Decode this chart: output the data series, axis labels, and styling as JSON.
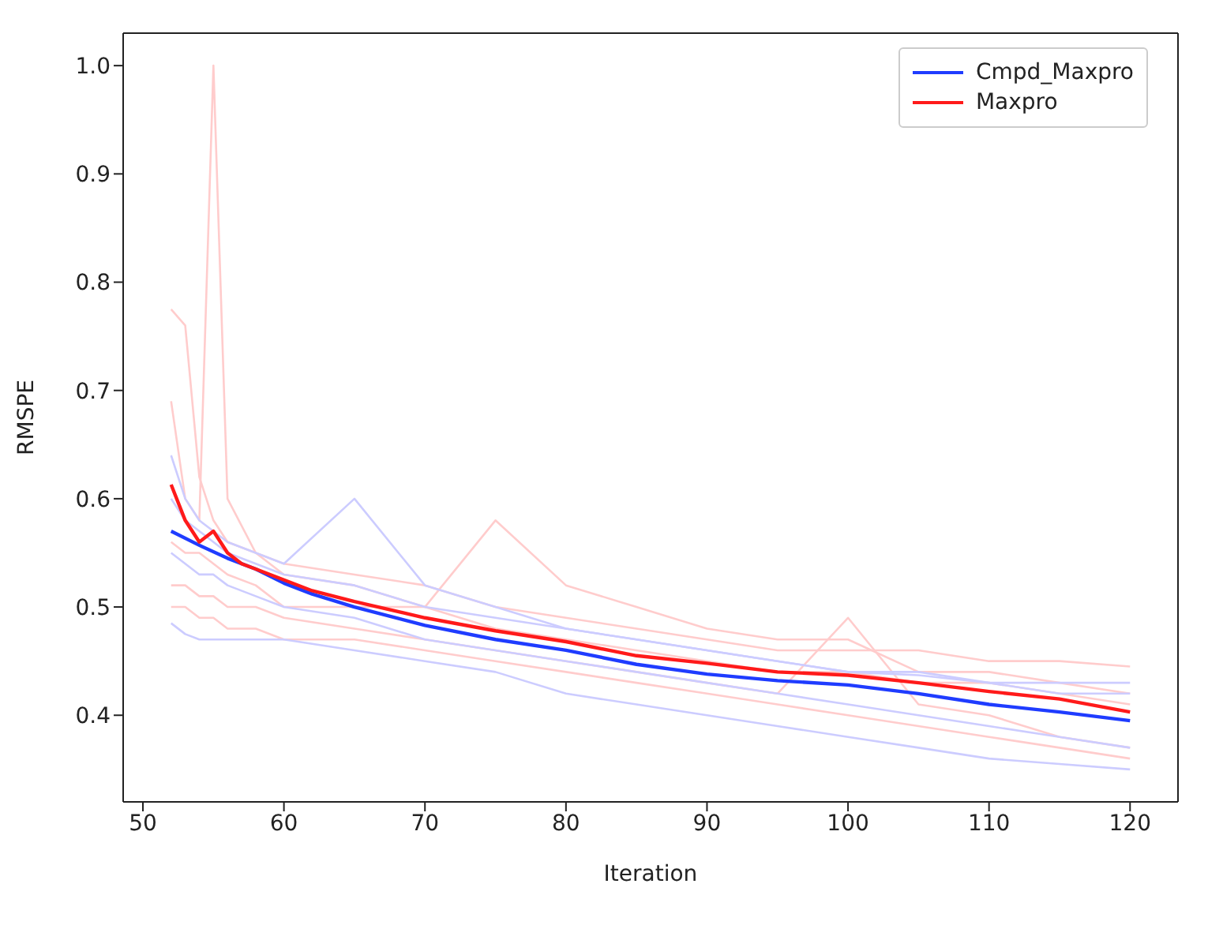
{
  "chart_data": {
    "type": "line",
    "xlabel": "Iteration",
    "ylabel": "RMSPE",
    "xlim": [
      48.6,
      123.4
    ],
    "ylim": [
      0.32,
      1.03
    ],
    "xticks": [
      50,
      60,
      70,
      80,
      90,
      100,
      110,
      120
    ],
    "yticks": [
      {
        "value": 0.4,
        "label": "0.4"
      },
      {
        "value": 0.5,
        "label": "0.5"
      },
      {
        "value": 0.6,
        "label": "0.6"
      },
      {
        "value": 0.7,
        "label": "0.7"
      },
      {
        "value": 0.8,
        "label": "0.8"
      },
      {
        "value": 0.9,
        "label": "0.9"
      },
      {
        "value": 1,
        "label": "1.0"
      }
    ],
    "grid": false,
    "legend": "top right",
    "marker": "none",
    "line_style": "solid",
    "series": [
      {
        "color": "#ffcccc",
        "x": [
          52,
          53,
          54,
          55,
          56,
          58,
          60,
          65,
          70,
          75,
          80,
          85,
          90,
          95,
          100,
          105,
          110,
          115,
          120
        ],
        "values": [
          0.69,
          0.6,
          0.58,
          1.0,
          0.6,
          0.55,
          0.53,
          0.52,
          0.5,
          0.48,
          0.47,
          0.46,
          0.45,
          0.44,
          0.44,
          0.43,
          0.43,
          0.42,
          0.41
        ]
      },
      {
        "color": "#ffcccc",
        "x": [
          52,
          53,
          54,
          55,
          56,
          58,
          60,
          65,
          70,
          75,
          80,
          85,
          90,
          95,
          100,
          105,
          110,
          115,
          120
        ],
        "values": [
          0.775,
          0.76,
          0.62,
          0.58,
          0.56,
          0.55,
          0.54,
          0.53,
          0.52,
          0.5,
          0.49,
          0.48,
          0.47,
          0.46,
          0.46,
          0.46,
          0.45,
          0.45,
          0.445
        ]
      },
      {
        "color": "#ffcccc",
        "x": [
          52,
          53,
          54,
          55,
          56,
          58,
          60,
          65,
          70,
          75,
          80,
          85,
          90,
          95,
          100,
          105,
          110,
          115,
          120
        ],
        "values": [
          0.56,
          0.55,
          0.55,
          0.54,
          0.53,
          0.52,
          0.5,
          0.5,
          0.5,
          0.58,
          0.52,
          0.5,
          0.48,
          0.47,
          0.47,
          0.44,
          0.44,
          0.43,
          0.42
        ]
      },
      {
        "color": "#ffcccc",
        "x": [
          52,
          53,
          54,
          55,
          56,
          58,
          60,
          65,
          70,
          75,
          80,
          85,
          90,
          95,
          100,
          105,
          110,
          115,
          120
        ],
        "values": [
          0.52,
          0.52,
          0.51,
          0.51,
          0.5,
          0.5,
          0.49,
          0.48,
          0.47,
          0.46,
          0.45,
          0.44,
          0.43,
          0.42,
          0.49,
          0.41,
          0.4,
          0.38,
          0.37
        ]
      },
      {
        "color": "#ffcccc",
        "x": [
          52,
          53,
          54,
          55,
          56,
          58,
          60,
          65,
          70,
          75,
          80,
          85,
          90,
          95,
          100,
          105,
          110,
          115,
          120
        ],
        "values": [
          0.5,
          0.5,
          0.49,
          0.49,
          0.48,
          0.48,
          0.47,
          0.47,
          0.46,
          0.45,
          0.44,
          0.43,
          0.42,
          0.41,
          0.4,
          0.39,
          0.38,
          0.37,
          0.36
        ]
      },
      {
        "color": "#ccccff",
        "x": [
          52,
          53,
          54,
          55,
          56,
          58,
          60,
          65,
          70,
          75,
          80,
          85,
          90,
          95,
          100,
          105,
          110,
          115,
          120
        ],
        "values": [
          0.64,
          0.6,
          0.58,
          0.57,
          0.56,
          0.55,
          0.54,
          0.6,
          0.52,
          0.5,
          0.48,
          0.47,
          0.46,
          0.45,
          0.44,
          0.437,
          0.43,
          0.42,
          0.42
        ]
      },
      {
        "color": "#ccccff",
        "x": [
          52,
          53,
          54,
          55,
          56,
          58,
          60,
          65,
          70,
          75,
          80,
          85,
          90,
          95,
          100,
          105,
          110,
          115,
          120
        ],
        "values": [
          0.485,
          0.475,
          0.47,
          0.47,
          0.47,
          0.47,
          0.47,
          0.46,
          0.45,
          0.44,
          0.42,
          0.41,
          0.4,
          0.39,
          0.38,
          0.37,
          0.36,
          0.355,
          0.35
        ]
      },
      {
        "color": "#ccccff",
        "x": [
          52,
          53,
          54,
          55,
          56,
          58,
          60,
          65,
          70,
          75,
          80,
          85,
          90,
          95,
          100,
          105,
          110,
          115,
          120
        ],
        "values": [
          0.6,
          0.58,
          0.57,
          0.56,
          0.55,
          0.54,
          0.53,
          0.52,
          0.5,
          0.49,
          0.48,
          0.47,
          0.46,
          0.45,
          0.44,
          0.44,
          0.43,
          0.43,
          0.43
        ]
      },
      {
        "color": "#ccccff",
        "x": [
          52,
          53,
          54,
          55,
          56,
          58,
          60,
          65,
          70,
          75,
          80,
          85,
          90,
          95,
          100,
          105,
          110,
          115,
          120
        ],
        "values": [
          0.55,
          0.54,
          0.53,
          0.53,
          0.52,
          0.51,
          0.5,
          0.49,
          0.47,
          0.46,
          0.45,
          0.44,
          0.43,
          0.42,
          0.41,
          0.4,
          0.39,
          0.38,
          0.37
        ]
      },
      {
        "name": "Cmpd_Maxpro",
        "color": "#1f3cff",
        "x": [
          52,
          54,
          56,
          58,
          60,
          62,
          65,
          70,
          75,
          80,
          85,
          90,
          95,
          100,
          105,
          110,
          115,
          120
        ],
        "values": [
          0.57,
          0.557,
          0.545,
          0.535,
          0.522,
          0.512,
          0.5,
          0.483,
          0.47,
          0.46,
          0.447,
          0.438,
          0.432,
          0.428,
          0.42,
          0.41,
          0.403,
          0.395
        ]
      },
      {
        "name": "Maxpro",
        "color": "#ff1a1a",
        "x": [
          52,
          53,
          54,
          55,
          56,
          57,
          58,
          60,
          62,
          65,
          70,
          75,
          80,
          85,
          90,
          95,
          100,
          105,
          110,
          115,
          120
        ],
        "values": [
          0.613,
          0.58,
          0.56,
          0.57,
          0.55,
          0.54,
          0.535,
          0.525,
          0.515,
          0.505,
          0.49,
          0.478,
          0.468,
          0.455,
          0.448,
          0.44,
          0.437,
          0.43,
          0.422,
          0.415,
          0.403
        ]
      }
    ]
  }
}
